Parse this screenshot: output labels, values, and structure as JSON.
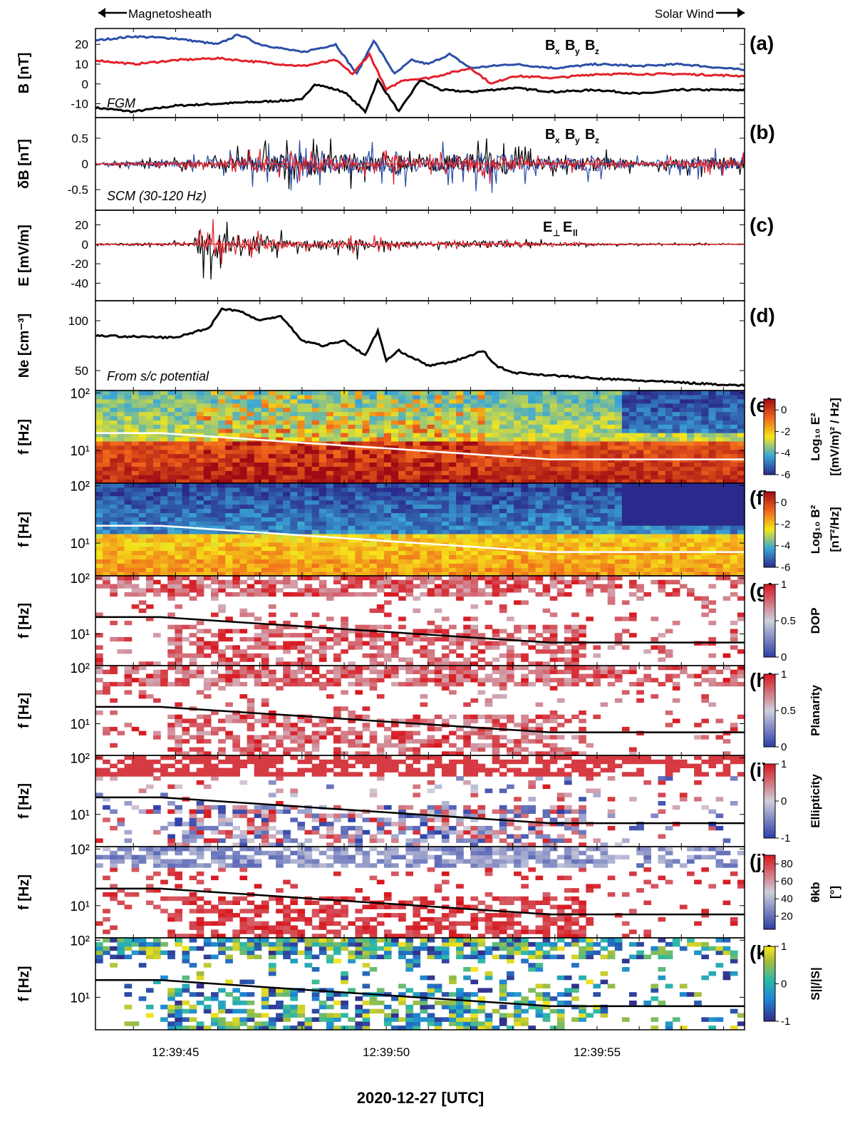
{
  "header": {
    "left_label": "Magnetosheath",
    "right_label": "Solar Wind"
  },
  "colors": {
    "bx": "#000000",
    "by": "#2a4ea8",
    "bz": "#e4202a",
    "cut_line_white": "#ffffff",
    "cut_line_black": "#000000"
  },
  "chart_data": {
    "type": "line",
    "xlabel": "2020-12-27 [UTC]",
    "x_range": [
      "12:39:43.1",
      "12:39:58.5"
    ],
    "x_ticks": [
      "12:39:45",
      "12:39:50",
      "12:39:55"
    ],
    "panels": [
      {
        "letter": "(a)",
        "ylabel": "B [nT]",
        "ylim": [
          -17,
          28
        ],
        "yticks": [
          "20",
          "10",
          "0",
          "-10"
        ],
        "annotation": "FGM",
        "legend": [
          "B",
          "x",
          "B",
          "y",
          "B",
          "z"
        ],
        "series": [
          {
            "name": "Bx",
            "color": "#000000",
            "x": [
              "12:39:43.1",
              "12:39:44",
              "12:39:45",
              "12:39:46",
              "12:39:47",
              "12:39:48",
              "12:39:48.3",
              "12:39:49",
              "12:39:49.5",
              "12:39:49.8",
              "12:39:50.3",
              "12:39:50.8",
              "12:39:51.3",
              "12:39:52",
              "12:39:53",
              "12:39:54",
              "12:39:55",
              "12:39:56",
              "12:39:57",
              "12:39:58.5"
            ],
            "values": [
              -12,
              -14,
              -11,
              -10,
              -9,
              -8,
              0,
              -4,
              -14,
              2,
              -14,
              2,
              -3,
              -4,
              -2,
              -4,
              -3,
              -5,
              -3,
              -3
            ]
          },
          {
            "name": "By",
            "color": "#2a4ea8",
            "x": [
              "12:39:43.1",
              "12:39:44",
              "12:39:45",
              "12:39:46",
              "12:39:46.5",
              "12:39:47",
              "12:39:48",
              "12:39:48.8",
              "12:39:49.3",
              "12:39:49.7",
              "12:39:50.2",
              "12:39:50.6",
              "12:39:51",
              "12:39:51.5",
              "12:39:52",
              "12:39:53",
              "12:39:54",
              "12:39:55",
              "12:39:56",
              "12:39:57",
              "12:39:58.5"
            ],
            "values": [
              22,
              24,
              23,
              20,
              25,
              20,
              16,
              20,
              5,
              22,
              5,
              12,
              10,
              15,
              8,
              10,
              8,
              10,
              9,
              10,
              7
            ]
          },
          {
            "name": "Bz",
            "color": "#e4202a",
            "x": [
              "12:39:43.1",
              "12:39:44",
              "12:39:45",
              "12:39:46",
              "12:39:47",
              "12:39:48",
              "12:39:48.8",
              "12:39:49.2",
              "12:39:49.6",
              "12:39:50",
              "12:39:50.4",
              "12:39:51",
              "12:39:52",
              "12:39:52.5",
              "12:39:53",
              "12:39:54",
              "12:39:55",
              "12:39:56",
              "12:39:57",
              "12:39:58.5"
            ],
            "values": [
              12,
              10,
              12,
              13,
              11,
              9,
              12,
              5,
              15,
              -3,
              2,
              3,
              8,
              0,
              4,
              3,
              5,
              5,
              5,
              4
            ]
          }
        ]
      },
      {
        "letter": "(b)",
        "ylabel": "δB [nT]",
        "ylim": [
          -0.9,
          0.9
        ],
        "yticks": [
          "0.5",
          "0",
          "-0.5"
        ],
        "annotation": "SCM (30-120 Hz)",
        "legend": [
          "B",
          "x",
          "B",
          "y",
          "B",
          "z"
        ]
      },
      {
        "letter": "(c)",
        "ylabel": "E [mV/m]",
        "ylim": [
          -58,
          35
        ],
        "yticks": [
          "20",
          "0",
          "-20",
          "-40"
        ],
        "annotation": "",
        "legend": [
          "E",
          "⊥",
          "E",
          "ll"
        ]
      },
      {
        "letter": "(d)",
        "ylabel": "Ne [cm⁻³]",
        "ylim": [
          30,
          120
        ],
        "yticks": [
          "100",
          "50"
        ],
        "annotation": "From s/c potential",
        "series": [
          {
            "name": "Ne",
            "color": "#000000",
            "x": [
              "12:39:43.1",
              "12:39:44",
              "12:39:45",
              "12:39:45.8",
              "12:39:46.1",
              "12:39:46.5",
              "12:39:47",
              "12:39:47.5",
              "12:39:48",
              "12:39:48.5",
              "12:39:49",
              "12:39:49.5",
              "12:39:49.8",
              "12:39:50",
              "12:39:50.3",
              "12:39:51",
              "12:39:51.5",
              "12:39:52",
              "12:39:52.3",
              "12:39:52.6",
              "12:39:53",
              "12:39:54",
              "12:39:55",
              "12:39:56",
              "12:39:57",
              "12:39:58.5"
            ],
            "values": [
              85,
              84,
              83,
              93,
              112,
              110,
              100,
              105,
              80,
              75,
              80,
              65,
              90,
              60,
              70,
              55,
              58,
              65,
              70,
              55,
              48,
              45,
              42,
              40,
              38,
              35
            ]
          }
        ]
      },
      {
        "letter": "(e)",
        "ylabel": "f [Hz]",
        "ylim_log": [
          2.7,
          110
        ],
        "yticks": [
          "10²",
          "10¹"
        ],
        "colorbar": {
          "label1": "Log₁₀ E²",
          "label2": "[(mV/m)² / Hz]",
          "ticks": [
            "0",
            "-2",
            "-4",
            "-6"
          ],
          "range": [
            -6,
            1
          ]
        }
      },
      {
        "letter": "(f)",
        "ylabel": "f [Hz]",
        "ylim_log": [
          2.7,
          110
        ],
        "yticks": [
          "10²",
          "10¹"
        ],
        "colorbar": {
          "label1": "Log₁₀ B²",
          "label2": "[nT²/Hz]",
          "ticks": [
            "0",
            "-2",
            "-4",
            "-6"
          ],
          "range": [
            -6,
            1
          ]
        }
      },
      {
        "letter": "(g)",
        "ylabel": "f [Hz]",
        "ylim_log": [
          2.7,
          110
        ],
        "yticks": [
          "10²",
          "10¹"
        ],
        "colorbar": {
          "label1": "DOP",
          "label2": "",
          "ticks": [
            "1",
            "0.5",
            "0"
          ],
          "range": [
            0,
            1
          ]
        }
      },
      {
        "letter": "(h)",
        "ylabel": "f [Hz]",
        "ylim_log": [
          2.7,
          110
        ],
        "yticks": [
          "10²",
          "10¹"
        ],
        "colorbar": {
          "label1": "Planarity",
          "label2": "",
          "ticks": [
            "1",
            "0.5",
            "0"
          ],
          "range": [
            0,
            1
          ]
        }
      },
      {
        "letter": "(i)",
        "ylabel": "f [Hz]",
        "ylim_log": [
          2.7,
          110
        ],
        "yticks": [
          "10²",
          "10¹"
        ],
        "colorbar": {
          "label1": "Ellipticity",
          "label2": "",
          "ticks": [
            "1",
            "0",
            "-1"
          ],
          "range": [
            -1,
            1
          ]
        }
      },
      {
        "letter": "(j)",
        "ylabel": "f [Hz]",
        "ylim_log": [
          2.7,
          110
        ],
        "yticks": [
          "10²",
          "10¹"
        ],
        "colorbar": {
          "label1": "θkb",
          "label2": "[°]",
          "ticks": [
            "80",
            "60",
            "40",
            "20"
          ],
          "range": [
            5,
            90
          ]
        }
      },
      {
        "letter": "(k)",
        "ylabel": "f [Hz]",
        "ylim_log": [
          2.7,
          110
        ],
        "yticks": [
          "10²",
          "10¹"
        ],
        "colorbar": {
          "label1": "S||/|S|",
          "label2": "",
          "ticks": [
            "1",
            "0",
            "-1"
          ],
          "range": [
            -1,
            1
          ]
        }
      }
    ]
  }
}
